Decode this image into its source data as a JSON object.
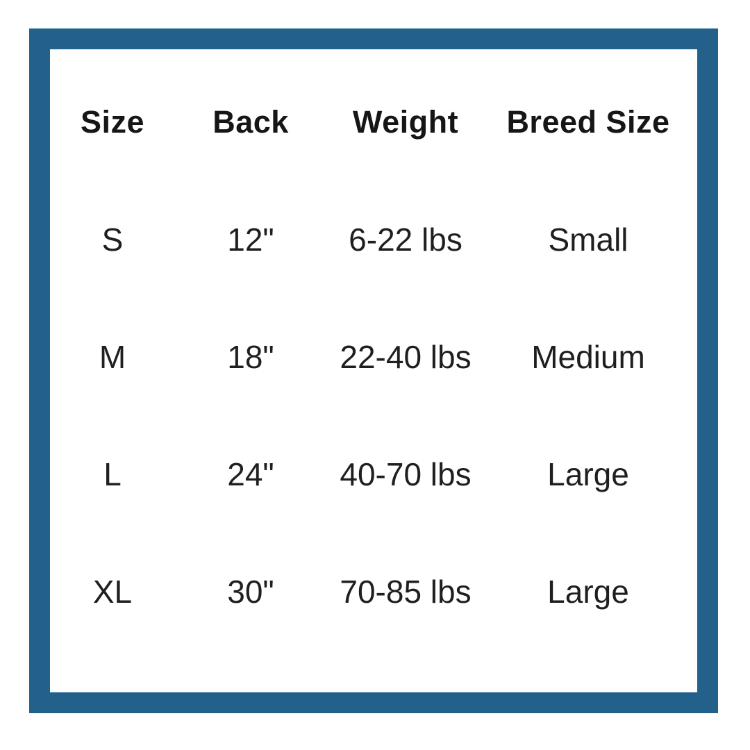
{
  "frame": {
    "border_color": "#23618a",
    "background_color": "#ffffff"
  },
  "chart_data": {
    "type": "table",
    "columns": [
      "Size",
      "Back",
      "Weight",
      "Breed Size"
    ],
    "rows": [
      [
        "S",
        "12\"",
        "6-22 lbs",
        "Small"
      ],
      [
        "M",
        "18\"",
        "22-40 lbs",
        "Medium"
      ],
      [
        "L",
        "24\"",
        "40-70 lbs",
        "Large"
      ],
      [
        "XL",
        "30\"",
        "70-85 lbs",
        "Large"
      ]
    ]
  }
}
